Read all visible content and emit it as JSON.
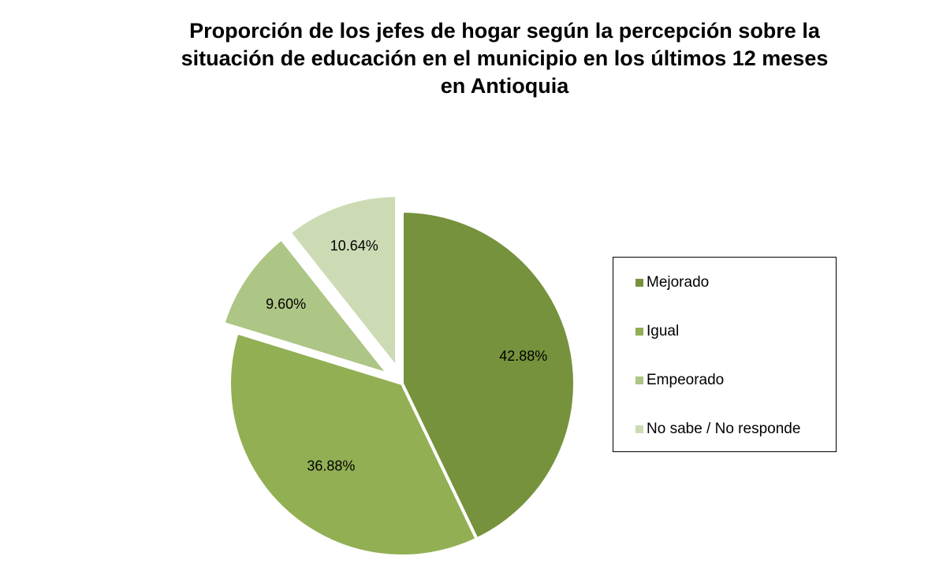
{
  "chart_data": {
    "type": "pie",
    "title_lines": [
      "Proporción de los jefes de hogar según la percepción sobre la",
      "situación de educación en el municipio en los últimos 12 meses",
      "en Antioquia"
    ],
    "categories": [
      "Mejorado",
      "Igual",
      "Empeorado",
      "No sabe / No responde"
    ],
    "values": [
      42.88,
      36.88,
      9.6,
      10.64
    ],
    "labels": [
      "42.88%",
      "36.88%",
      "9.60%",
      "10.64%"
    ],
    "colors": [
      "#76923C",
      "#92AF54",
      "#ADC585",
      "#CDDBB5"
    ],
    "exploded": [
      false,
      false,
      true,
      true
    ],
    "legend_position": "right"
  }
}
